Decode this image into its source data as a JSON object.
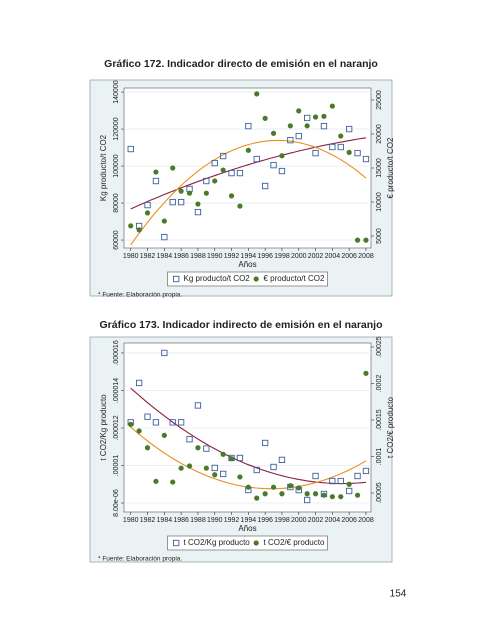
{
  "page_number": "154",
  "chart_data": [
    {
      "type": "scatter",
      "title": "Gráfico 172. Indicador directo de emisión en el naranjo",
      "x_label": "Años",
      "y_label": "Kg producto/t CO2",
      "y2_label": "€ producto/t CO2",
      "note": "* Fuente: Elaboración propia.",
      "grid": true,
      "fit": "quadratic",
      "x": [
        1980,
        1981,
        1982,
        1983,
        1984,
        1985,
        1986,
        1987,
        1988,
        1989,
        1990,
        1991,
        1992,
        1993,
        1994,
        1995,
        1996,
        1997,
        1998,
        1999,
        2000,
        2001,
        2002,
        2003,
        2004,
        2005,
        2006,
        2007,
        2008
      ],
      "xlim": [
        1979.2,
        2008.6
      ],
      "xticks": [
        1980,
        1982,
        1984,
        1986,
        1988,
        1990,
        1992,
        1994,
        1996,
        1998,
        2000,
        2002,
        2004,
        2006,
        2008
      ],
      "ylim": [
        55700,
        142200
      ],
      "yticks": [
        60000,
        80000,
        100000,
        120000,
        140000
      ],
      "y2lim": [
        3240,
        26760
      ],
      "y2ticks": [
        5000,
        10000,
        15000,
        20000,
        25000
      ],
      "series": [
        {
          "name": "Kg producto/t CO2",
          "color": "#3f5f9a",
          "marker": "square",
          "fit_color": "#8b1f45",
          "values": [
            109200,
            67600,
            78900,
            91900,
            61600,
            80500,
            80500,
            87600,
            75100,
            91900,
            101600,
            105400,
            96200,
            96200,
            121600,
            103800,
            89200,
            100500,
            97300,
            114000,
            116200,
            126000,
            107000,
            121600,
            110300,
            110300,
            120000,
            107000,
            103800
          ]
        },
        {
          "name": "€ producto/t CO2",
          "color": "#4a7a2a",
          "marker": "circle",
          "axis": "y2",
          "fit_color": "#e8901e",
          "values": [
            6500,
            5900,
            8400,
            14400,
            7200,
            15000,
            11600,
            11300,
            9700,
            11300,
            13100,
            14700,
            10900,
            9400,
            17600,
            25900,
            22300,
            20100,
            16800,
            21200,
            23400,
            21200,
            22500,
            22600,
            24100,
            19700,
            17300,
            4400,
            4400
          ]
        }
      ]
    },
    {
      "type": "scatter",
      "title": "Gráfico 173. Indicador indirecto de emisión en el naranjo",
      "x_label": "Años",
      "y_label": "t CO2/Kg producto",
      "y2_label": "t CO2/€ producto",
      "note": "* Fuente: Elaboración propia.",
      "grid": true,
      "fit": "quadratic",
      "x": [
        1980,
        1981,
        1982,
        1983,
        1984,
        1985,
        1986,
        1987,
        1988,
        1989,
        1990,
        1991,
        1992,
        1993,
        1994,
        1995,
        1996,
        1997,
        1998,
        1999,
        2000,
        2001,
        2002,
        2003,
        2004,
        2005,
        2006,
        2007,
        2008
      ],
      "xlim": [
        1979.2,
        2008.6
      ],
      "xticks": [
        1980,
        1982,
        1984,
        1986,
        1988,
        1990,
        1992,
        1994,
        1996,
        1998,
        2000,
        2002,
        2004,
        2006,
        2008
      ],
      "ylim": [
        7.52e-06,
        1.653e-05
      ],
      "yticks": [
        {
          "value": 8e-06,
          "label": "8.00e-06"
        },
        {
          "value": 1e-05,
          "label": ".00001"
        },
        {
          "value": 1.2e-05,
          "label": ".000012"
        },
        {
          "value": 1.4e-05,
          "label": ".000014"
        },
        {
          "value": 1.6e-05,
          "label": ".000016"
        }
      ],
      "y2lim": [
        2.4e-05,
        0.0002555
      ],
      "y2ticks": [
        {
          "value": 5e-05,
          "label": ".00005"
        },
        {
          "value": 0.0001,
          "label": ".0001"
        },
        {
          "value": 0.00015,
          "label": ".00015"
        },
        {
          "value": 0.0002,
          "label": ".0002"
        },
        {
          "value": 0.00025,
          "label": ".00025"
        }
      ],
      "series": [
        {
          "name": "t CO2/Kg producto",
          "color": "#3f5f9a",
          "marker": "square",
          "fit_color": "#8b1f45",
          "values": [
            1.23e-05,
            1.44e-05,
            1.26e-05,
            1.23e-05,
            1.6e-05,
            1.23e-05,
            1.23e-05,
            1.14e-05,
            1.32e-05,
            1.09e-05,
            9.87e-06,
            9.55e-06,
            1.04e-05,
            1.04e-05,
            8.69e-06,
            9.76e-06,
            1.12e-05,
            9.92e-06,
            1.03e-05,
            8.85e-06,
            8.69e-06,
            8.16e-06,
            9.44e-06,
            8.48e-06,
            9.17e-06,
            9.17e-06,
            8.64e-06,
            9.44e-06,
            9.71e-06
          ]
        },
        {
          "name": "t CO2/€ producto",
          "color": "#4a7a2a",
          "marker": "circle",
          "axis": "y2",
          "fit_color": "#e8901e",
          "values": [
            0.000144,
            0.000135,
            0.000112,
            6.6e-05,
            0.000129,
            6.5e-05,
            8.4e-05,
            8.7e-05,
            0.000112,
            8.4e-05,
            7.5e-05,
            0.000103,
            9.7e-05,
            7.2e-05,
            5.8e-05,
            4.3e-05,
            4.9e-05,
            5.8e-05,
            4.9e-05,
            6e-05,
            5.7e-05,
            4.9e-05,
            4.9e-05,
            4.7e-05,
            4.5e-05,
            4.5e-05,
            6.2e-05,
            4.7e-05,
            0.000214
          ]
        }
      ]
    }
  ]
}
